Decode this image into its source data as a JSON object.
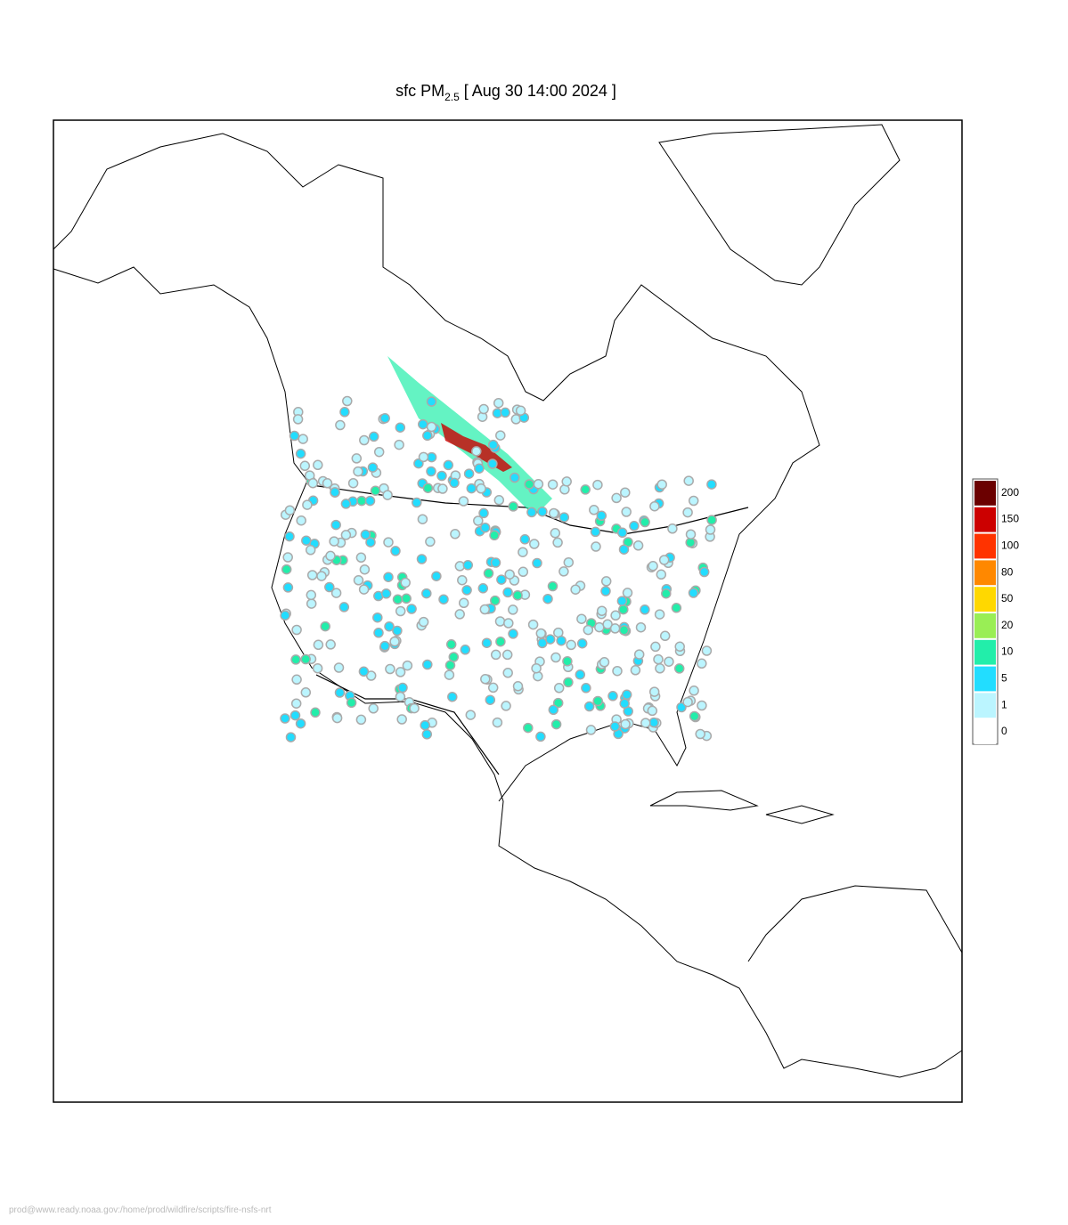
{
  "title": {
    "prefix": "sfc PM",
    "subscript": "2.5",
    "suffix": "[ Aug 30 14:00 2024 ]"
  },
  "legend": {
    "levels": [
      {
        "value": 200,
        "color": "#6b0000"
      },
      {
        "value": 150,
        "color": "#cc0000"
      },
      {
        "value": 100,
        "color": "#ff3300"
      },
      {
        "value": 80,
        "color": "#ff8800"
      },
      {
        "value": 50,
        "color": "#ffd800"
      },
      {
        "value": 20,
        "color": "#99ee55"
      },
      {
        "value": 10,
        "color": "#22eeaa"
      },
      {
        "value": 5,
        "color": "#22ddff"
      },
      {
        "value": 1,
        "color": "#bbf5ff"
      },
      {
        "value": 0,
        "color": "#ffffff"
      }
    ]
  },
  "footer": "prod@www.ready.noaa.gov:/home/prod/wildfire/scripts/fire-nsfs-nrt"
}
